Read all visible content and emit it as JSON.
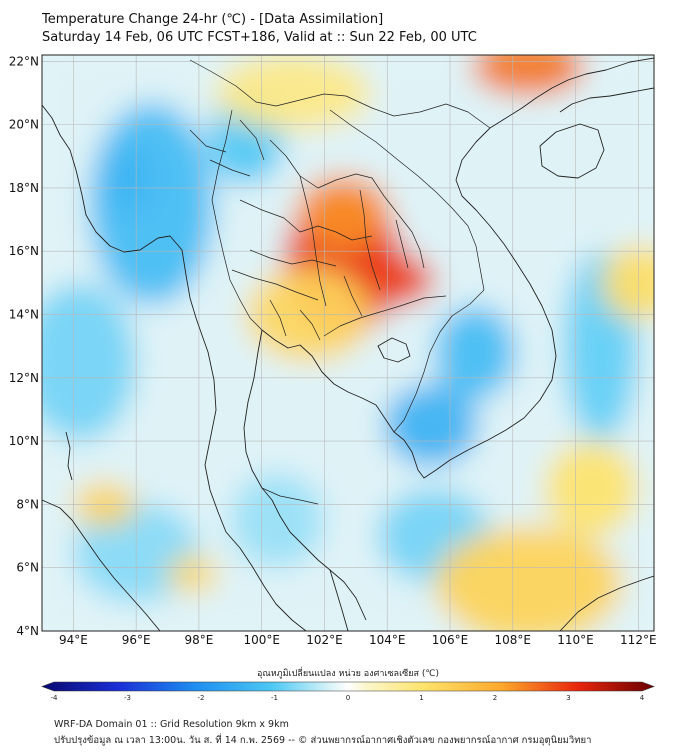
{
  "header": {
    "title": "Temperature Change 24-hr (℃) - [Data Assimilation]",
    "subtitle": "Saturday 14 Feb, 06 UTC FCST+186, Valid at :: Sun 22 Feb, 00 UTC"
  },
  "map": {
    "lon_range": [
      93,
      112.5
    ],
    "lat_range": [
      4,
      22.2
    ],
    "lon_ticks": [
      "94°E",
      "96°E",
      "98°E",
      "100°E",
      "102°E",
      "104°E",
      "106°E",
      "108°E",
      "110°E",
      "112°E"
    ],
    "lon_tick_values": [
      94,
      96,
      98,
      100,
      102,
      104,
      106,
      108,
      110,
      112
    ],
    "lat_ticks": [
      "22°N",
      "20°N",
      "18°N",
      "16°N",
      "14°N",
      "12°N",
      "10°N",
      "8°N",
      "6°N",
      "4°N"
    ],
    "lat_tick_values": [
      22,
      20,
      18,
      16,
      14,
      12,
      10,
      8,
      6,
      4
    ],
    "blobs": [
      {
        "lon": 102.6,
        "lat": 15.6,
        "rx": 1.9,
        "ry": 2.3,
        "value": 3.0
      },
      {
        "lon": 104.4,
        "lat": 15.1,
        "rx": 1.1,
        "ry": 0.8,
        "value": 2.8
      },
      {
        "lon": 102.6,
        "lat": 17.2,
        "rx": 1.5,
        "ry": 1.2,
        "value": 2.2
      },
      {
        "lon": 108.5,
        "lat": 21.8,
        "rx": 1.8,
        "ry": 0.9,
        "value": 2.4
      },
      {
        "lon": 101.5,
        "lat": 14.0,
        "rx": 2.0,
        "ry": 1.5,
        "value": 1.2
      },
      {
        "lon": 95.7,
        "lat": 18.3,
        "rx": 0.9,
        "ry": 1.1,
        "value": -2.4
      },
      {
        "lon": 96.5,
        "lat": 17.5,
        "rx": 2.0,
        "ry": 3.2,
        "value": -1.2
      },
      {
        "lon": 99.5,
        "lat": 19.5,
        "rx": 1.2,
        "ry": 1.4,
        "value": -1.0
      },
      {
        "lon": 105.4,
        "lat": 10.5,
        "rx": 1.5,
        "ry": 1.3,
        "value": -1.4
      },
      {
        "lon": 106.8,
        "lat": 12.8,
        "rx": 1.3,
        "ry": 1.5,
        "value": -1.2
      },
      {
        "lon": 110.8,
        "lat": 13.0,
        "rx": 1.2,
        "ry": 3.0,
        "value": -0.9
      },
      {
        "lon": 94.2,
        "lat": 12.5,
        "rx": 1.8,
        "ry": 2.5,
        "value": -0.8
      },
      {
        "lon": 96.0,
        "lat": 6.5,
        "rx": 2.0,
        "ry": 1.6,
        "value": -0.7
      },
      {
        "lon": 105.5,
        "lat": 7.0,
        "rx": 1.8,
        "ry": 1.5,
        "value": -0.8
      },
      {
        "lon": 100.5,
        "lat": 7.5,
        "rx": 1.5,
        "ry": 1.5,
        "value": -0.6
      },
      {
        "lon": 95.0,
        "lat": 8.0,
        "rx": 1.0,
        "ry": 0.7,
        "value": 1.3
      },
      {
        "lon": 97.8,
        "lat": 5.8,
        "rx": 0.8,
        "ry": 0.6,
        "value": 1.2
      },
      {
        "lon": 108.5,
        "lat": 5.5,
        "rx": 3.0,
        "ry": 1.8,
        "value": 1.3
      },
      {
        "lon": 110.5,
        "lat": 8.5,
        "rx": 1.5,
        "ry": 1.5,
        "value": 1.0
      },
      {
        "lon": 112.0,
        "lat": 15.0,
        "rx": 1.2,
        "ry": 1.2,
        "value": 1.1
      },
      {
        "lon": 101.0,
        "lat": 21.0,
        "rx": 2.5,
        "ry": 1.2,
        "value": 0.8
      }
    ]
  },
  "colorbar": {
    "label": "อุณหภูมิเปลี่ยนแปลง หน่วย องศาเซลเซียส (℃)",
    "min": -4,
    "max": 4,
    "ticks": [
      "-4",
      "-3",
      "-2",
      "-1",
      "0",
      "1",
      "2",
      "3",
      "4"
    ],
    "tick_values": [
      -4,
      -3,
      -2,
      -1,
      0,
      1,
      2,
      3,
      4
    ]
  },
  "footer": {
    "line1": "WRF-DA Domain 01 :: Grid Resolution 9km x 9km",
    "line2": "ปรับปรุงข้อมูล ณ เวลา 13:00น. วัน ส. ที่ 14 ก.พ. 2569 -- © ส่วนพยากรณ์อากาศเชิงตัวเลข กองพยากรณ์อากาศ กรมอุตุนิยมวิทยา"
  },
  "colors": {
    "ocean_bg": "#dff3f7",
    "neutral": "#f6f6ee",
    "border_line": "#222222",
    "grid_line": "#b8b8b8"
  }
}
